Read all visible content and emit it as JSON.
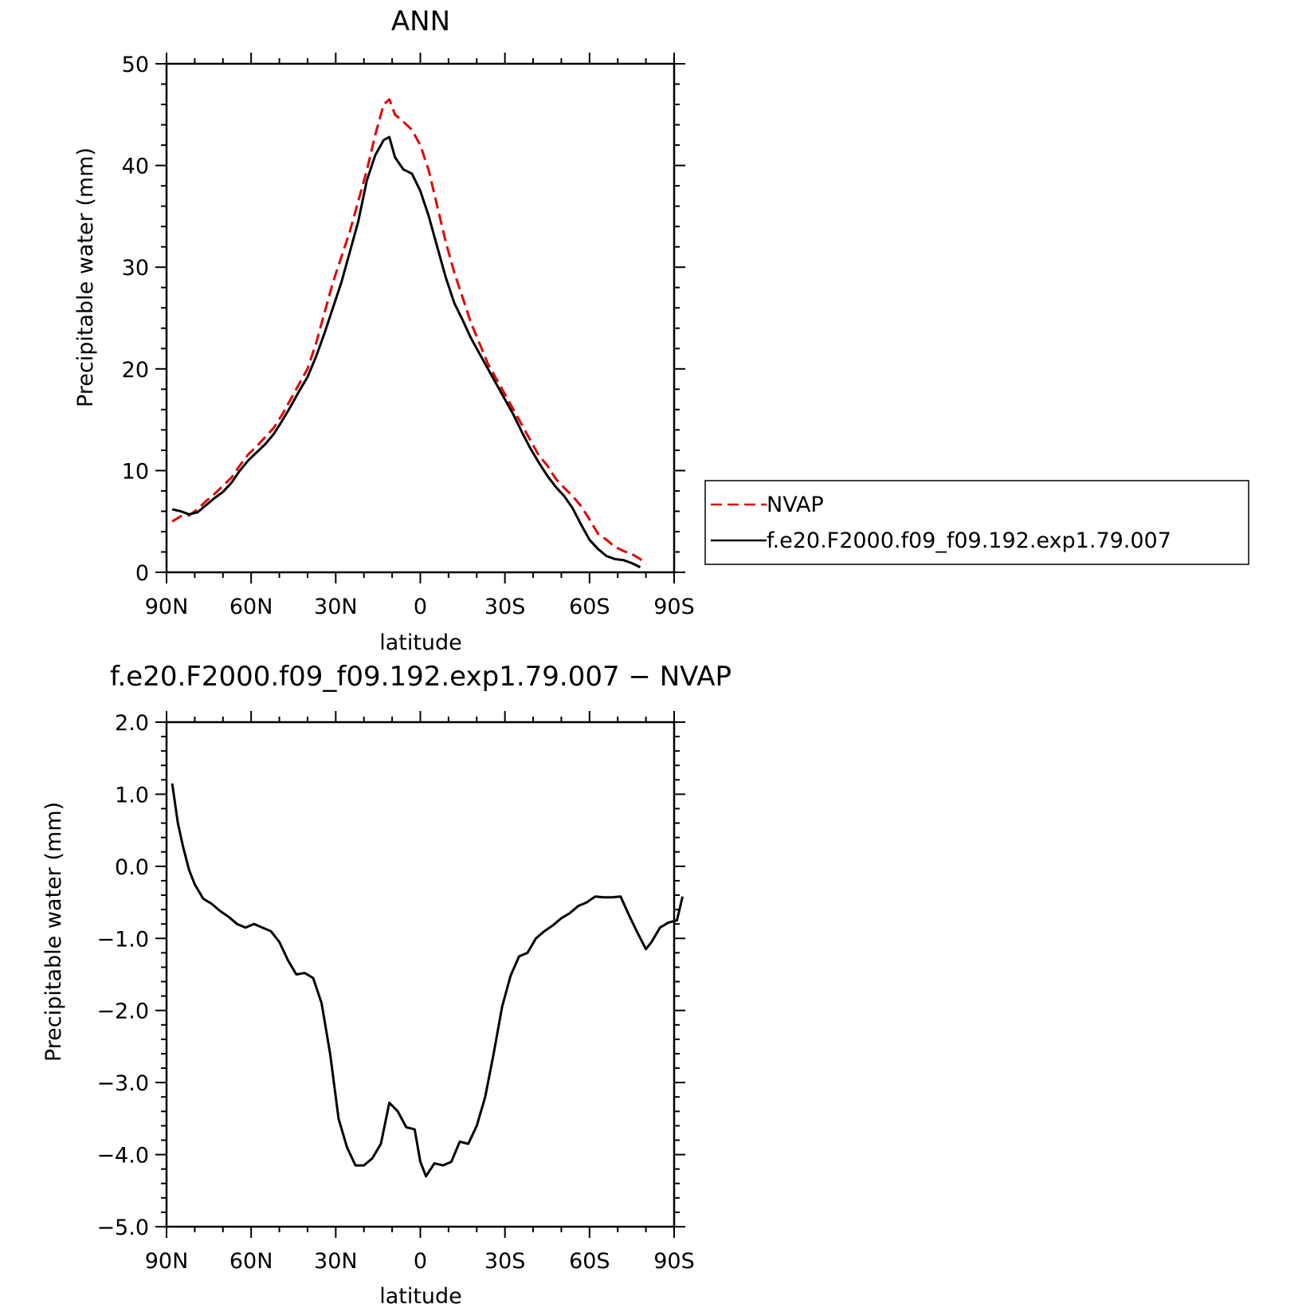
{
  "chart_data": [
    {
      "type": "line",
      "title": "ANN",
      "xlabel": "latitude",
      "ylabel": "Precipitable water (mm)",
      "xlim": [
        90,
        -90
      ],
      "ylim": [
        0,
        50
      ],
      "xticks": [
        {
          "value": 90,
          "label": "90N"
        },
        {
          "value": 60,
          "label": "60N"
        },
        {
          "value": 30,
          "label": "30N"
        },
        {
          "value": 0,
          "label": "0"
        },
        {
          "value": -30,
          "label": "30S"
        },
        {
          "value": -60,
          "label": "60S"
        },
        {
          "value": -90,
          "label": "90S"
        }
      ],
      "yticks": [
        {
          "value": 0,
          "label": "0"
        },
        {
          "value": 10,
          "label": "10"
        },
        {
          "value": 20,
          "label": "20"
        },
        {
          "value": 30,
          "label": "30"
        },
        {
          "value": 40,
          "label": "40"
        },
        {
          "value": 50,
          "label": "50"
        }
      ],
      "legend_position": "right",
      "series": [
        {
          "name": "NVAP",
          "color": "#e60000",
          "style": "dashed",
          "points": [
            [
              88,
              5.0
            ],
            [
              85,
              5.5
            ],
            [
              82,
              5.6
            ],
            [
              79,
              6.2
            ],
            [
              76,
              7.0
            ],
            [
              73,
              7.7
            ],
            [
              70,
              8.5
            ],
            [
              67,
              9.3
            ],
            [
              64,
              10.5
            ],
            [
              61,
              11.6
            ],
            [
              58,
              12.4
            ],
            [
              55,
              13.3
            ],
            [
              52,
              14.2
            ],
            [
              49,
              15.5
            ],
            [
              46,
              17.0
            ],
            [
              43,
              18.5
            ],
            [
              40,
              20.0
            ],
            [
              37,
              22.5
            ],
            [
              34,
              25.5
            ],
            [
              31,
              28.5
            ],
            [
              28,
              31.0
            ],
            [
              25,
              33.5
            ],
            [
              22,
              36.5
            ],
            [
              19,
              39.5
            ],
            [
              16,
              43.0
            ],
            [
              13,
              46.0
            ],
            [
              11,
              46.5
            ],
            [
              9,
              45.0
            ],
            [
              6,
              44.3
            ],
            [
              3,
              43.5
            ],
            [
              0,
              42.0
            ],
            [
              -3,
              39.5
            ],
            [
              -6,
              36.0
            ],
            [
              -9,
              32.5
            ],
            [
              -12,
              29.5
            ],
            [
              -15,
              27.0
            ],
            [
              -18,
              24.5
            ],
            [
              -21,
              22.5
            ],
            [
              -24,
              20.5
            ],
            [
              -27,
              19.0
            ],
            [
              -30,
              17.5
            ],
            [
              -33,
              16.0
            ],
            [
              -36,
              14.5
            ],
            [
              -39,
              13.0
            ],
            [
              -42,
              11.5
            ],
            [
              -45,
              10.5
            ],
            [
              -48,
              9.2
            ],
            [
              -51,
              8.3
            ],
            [
              -54,
              7.5
            ],
            [
              -57,
              6.5
            ],
            [
              -60,
              5.2
            ],
            [
              -63,
              3.8
            ],
            [
              -66,
              3.2
            ],
            [
              -69,
              2.5
            ],
            [
              -72,
              2.1
            ],
            [
              -75,
              1.8
            ],
            [
              -78,
              1.3
            ],
            [
              -80,
              0.8
            ]
          ]
        },
        {
          "name": "f.e20.F2000.f09_f09.192.exp1.79.007",
          "color": "#000000",
          "style": "solid",
          "points": [
            [
              88,
              6.2
            ],
            [
              85,
              6.0
            ],
            [
              82,
              5.7
            ],
            [
              79,
              5.9
            ],
            [
              76,
              6.6
            ],
            [
              73,
              7.3
            ],
            [
              70,
              7.9
            ],
            [
              67,
              8.8
            ],
            [
              64,
              10.0
            ],
            [
              61,
              11.0
            ],
            [
              58,
              11.8
            ],
            [
              55,
              12.6
            ],
            [
              52,
              13.6
            ],
            [
              49,
              14.9
            ],
            [
              46,
              16.3
            ],
            [
              43,
              17.8
            ],
            [
              40,
              19.2
            ],
            [
              37,
              21.2
            ],
            [
              34,
              23.5
            ],
            [
              31,
              26.0
            ],
            [
              28,
              28.5
            ],
            [
              25,
              31.5
            ],
            [
              22,
              34.5
            ],
            [
              19,
              38.5
            ],
            [
              16,
              41.0
            ],
            [
              13,
              42.5
            ],
            [
              11,
              42.8
            ],
            [
              9,
              40.8
            ],
            [
              6,
              39.6
            ],
            [
              3,
              39.2
            ],
            [
              0,
              37.5
            ],
            [
              -3,
              35.0
            ],
            [
              -6,
              32.0
            ],
            [
              -9,
              29.0
            ],
            [
              -12,
              26.5
            ],
            [
              -15,
              24.8
            ],
            [
              -18,
              23.0
            ],
            [
              -21,
              21.5
            ],
            [
              -24,
              20.0
            ],
            [
              -27,
              18.5
            ],
            [
              -30,
              17.0
            ],
            [
              -33,
              15.5
            ],
            [
              -36,
              13.8
            ],
            [
              -39,
              12.2
            ],
            [
              -42,
              10.8
            ],
            [
              -45,
              9.5
            ],
            [
              -48,
              8.4
            ],
            [
              -51,
              7.5
            ],
            [
              -54,
              6.3
            ],
            [
              -57,
              4.7
            ],
            [
              -60,
              3.2
            ],
            [
              -63,
              2.3
            ],
            [
              -66,
              1.6
            ],
            [
              -69,
              1.3
            ],
            [
              -72,
              1.2
            ],
            [
              -75,
              0.9
            ],
            [
              -78,
              0.5
            ]
          ]
        }
      ]
    },
    {
      "type": "line",
      "title": "f.e20.F2000.f09_f09.192.exp1.79.007 - NVAP",
      "xlabel": "latitude",
      "ylabel": "Precipitable water (mm)",
      "xlim": [
        90,
        -90
      ],
      "ylim": [
        -5.0,
        2.0
      ],
      "xticks": [
        {
          "value": 90,
          "label": "90N"
        },
        {
          "value": 60,
          "label": "60N"
        },
        {
          "value": 30,
          "label": "30N"
        },
        {
          "value": 0,
          "label": "0"
        },
        {
          "value": -30,
          "label": "30S"
        },
        {
          "value": -60,
          "label": "60S"
        },
        {
          "value": -90,
          "label": "90S"
        }
      ],
      "yticks": [
        {
          "value": -5.0,
          "label": "-5.0"
        },
        {
          "value": -4.0,
          "label": "-4.0"
        },
        {
          "value": -3.0,
          "label": "-3.0"
        },
        {
          "value": -2.0,
          "label": "-2.0"
        },
        {
          "value": -1.0,
          "label": "-1.0"
        },
        {
          "value": 0.0,
          "label": "0.0"
        },
        {
          "value": 1.0,
          "label": "1.0"
        },
        {
          "value": 2.0,
          "label": "2.0"
        }
      ],
      "series": [
        {
          "color": "#000000",
          "style": "solid",
          "points": [
            [
              88,
              1.15
            ],
            [
              86,
              0.6
            ],
            [
              84,
              0.25
            ],
            [
              82,
              -0.05
            ],
            [
              80,
              -0.25
            ],
            [
              77,
              -0.45
            ],
            [
              74,
              -0.52
            ],
            [
              71,
              -0.62
            ],
            [
              68,
              -0.7
            ],
            [
              65,
              -0.8
            ],
            [
              62,
              -0.85
            ],
            [
              59,
              -0.8
            ],
            [
              56,
              -0.85
            ],
            [
              53,
              -0.9
            ],
            [
              50,
              -1.05
            ],
            [
              47,
              -1.3
            ],
            [
              44,
              -1.5
            ],
            [
              41,
              -1.48
            ],
            [
              38,
              -1.55
            ],
            [
              35,
              -1.9
            ],
            [
              32,
              -2.6
            ],
            [
              29,
              -3.5
            ],
            [
              26,
              -3.9
            ],
            [
              23,
              -4.15
            ],
            [
              20,
              -4.15
            ],
            [
              17,
              -4.05
            ],
            [
              14,
              -3.85
            ],
            [
              11,
              -3.28
            ],
            [
              8,
              -3.4
            ],
            [
              5,
              -3.62
            ],
            [
              2,
              -3.65
            ],
            [
              0,
              -4.1
            ],
            [
              -2,
              -4.3
            ],
            [
              -5,
              -4.12
            ],
            [
              -8,
              -4.15
            ],
            [
              -11,
              -4.1
            ],
            [
              -14,
              -3.82
            ],
            [
              -17,
              -3.85
            ],
            [
              -20,
              -3.6
            ],
            [
              -23,
              -3.2
            ],
            [
              -26,
              -2.6
            ],
            [
              -29,
              -1.95
            ],
            [
              -32,
              -1.52
            ],
            [
              -35,
              -1.25
            ],
            [
              -38,
              -1.2
            ],
            [
              -41,
              -1.0
            ],
            [
              -44,
              -0.9
            ],
            [
              -47,
              -0.82
            ],
            [
              -50,
              -0.72
            ],
            [
              -53,
              -0.65
            ],
            [
              -56,
              -0.55
            ],
            [
              -59,
              -0.5
            ],
            [
              -62,
              -0.42
            ],
            [
              -65,
              -0.43
            ],
            [
              -68,
              -0.43
            ],
            [
              -71,
              -0.42
            ],
            [
              -74,
              -0.68
            ],
            [
              -77,
              -0.92
            ],
            [
              -80,
              -1.15
            ],
            [
              -82,
              -1.05
            ],
            [
              -85,
              -0.85
            ],
            [
              -88,
              -0.78
            ],
            [
              -91,
              -0.75
            ],
            [
              -93,
              -0.42
            ]
          ]
        }
      ]
    }
  ]
}
